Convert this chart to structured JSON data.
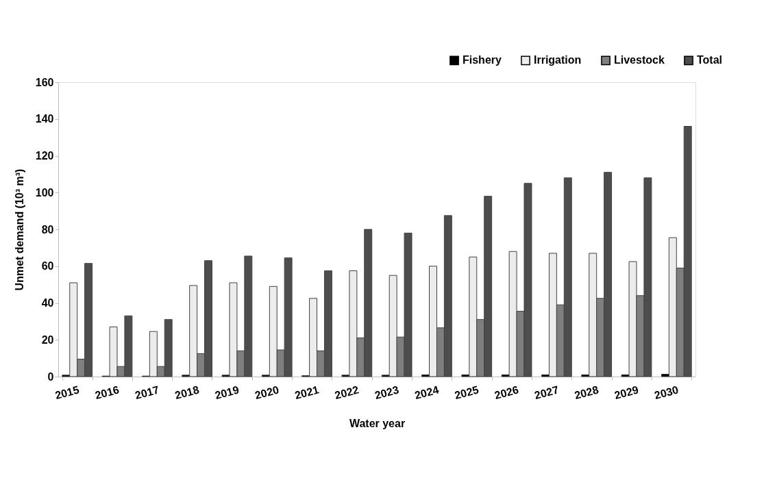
{
  "chart_data": {
    "type": "bar",
    "xlabel": "Water year",
    "ylabel": "Unmet demand (10³ m³)",
    "categories": [
      "2015",
      "2016",
      "2017",
      "2018",
      "2019",
      "2020",
      "2021",
      "2022",
      "2023",
      "2024",
      "2025",
      "2026",
      "2027",
      "2028",
      "2029",
      "2030"
    ],
    "series": [
      {
        "name": "Fishery",
        "color": "#000000",
        "values": [
          0.8,
          0.3,
          0.3,
          0.8,
          0.8,
          0.8,
          0.5,
          0.8,
          0.8,
          1,
          1,
          1,
          1,
          1,
          1,
          1.3
        ]
      },
      {
        "name": "Irrigation",
        "color": "#ececec",
        "values": [
          51,
          27,
          24.5,
          49.5,
          51,
          49,
          42.5,
          57.5,
          55,
          60,
          65,
          68,
          67,
          67,
          62.5,
          75.5
        ]
      },
      {
        "name": "Livestock",
        "color": "#7f7f7f",
        "values": [
          9.5,
          5.5,
          5.5,
          12.5,
          14,
          14.5,
          14,
          21,
          21.5,
          26.5,
          31,
          35.5,
          39,
          42.5,
          44,
          59
        ]
      },
      {
        "name": "Total",
        "color": "#4d4d4d",
        "values": [
          61.5,
          33,
          31,
          63,
          65.5,
          64.5,
          57.5,
          80,
          78,
          87.5,
          98,
          105,
          108,
          111,
          108,
          136
        ]
      }
    ],
    "ylim": [
      0,
      160
    ],
    "yticks": [
      0,
      20,
      40,
      60,
      80,
      100,
      120,
      140,
      160
    ],
    "grid": false,
    "legend": "top right"
  }
}
